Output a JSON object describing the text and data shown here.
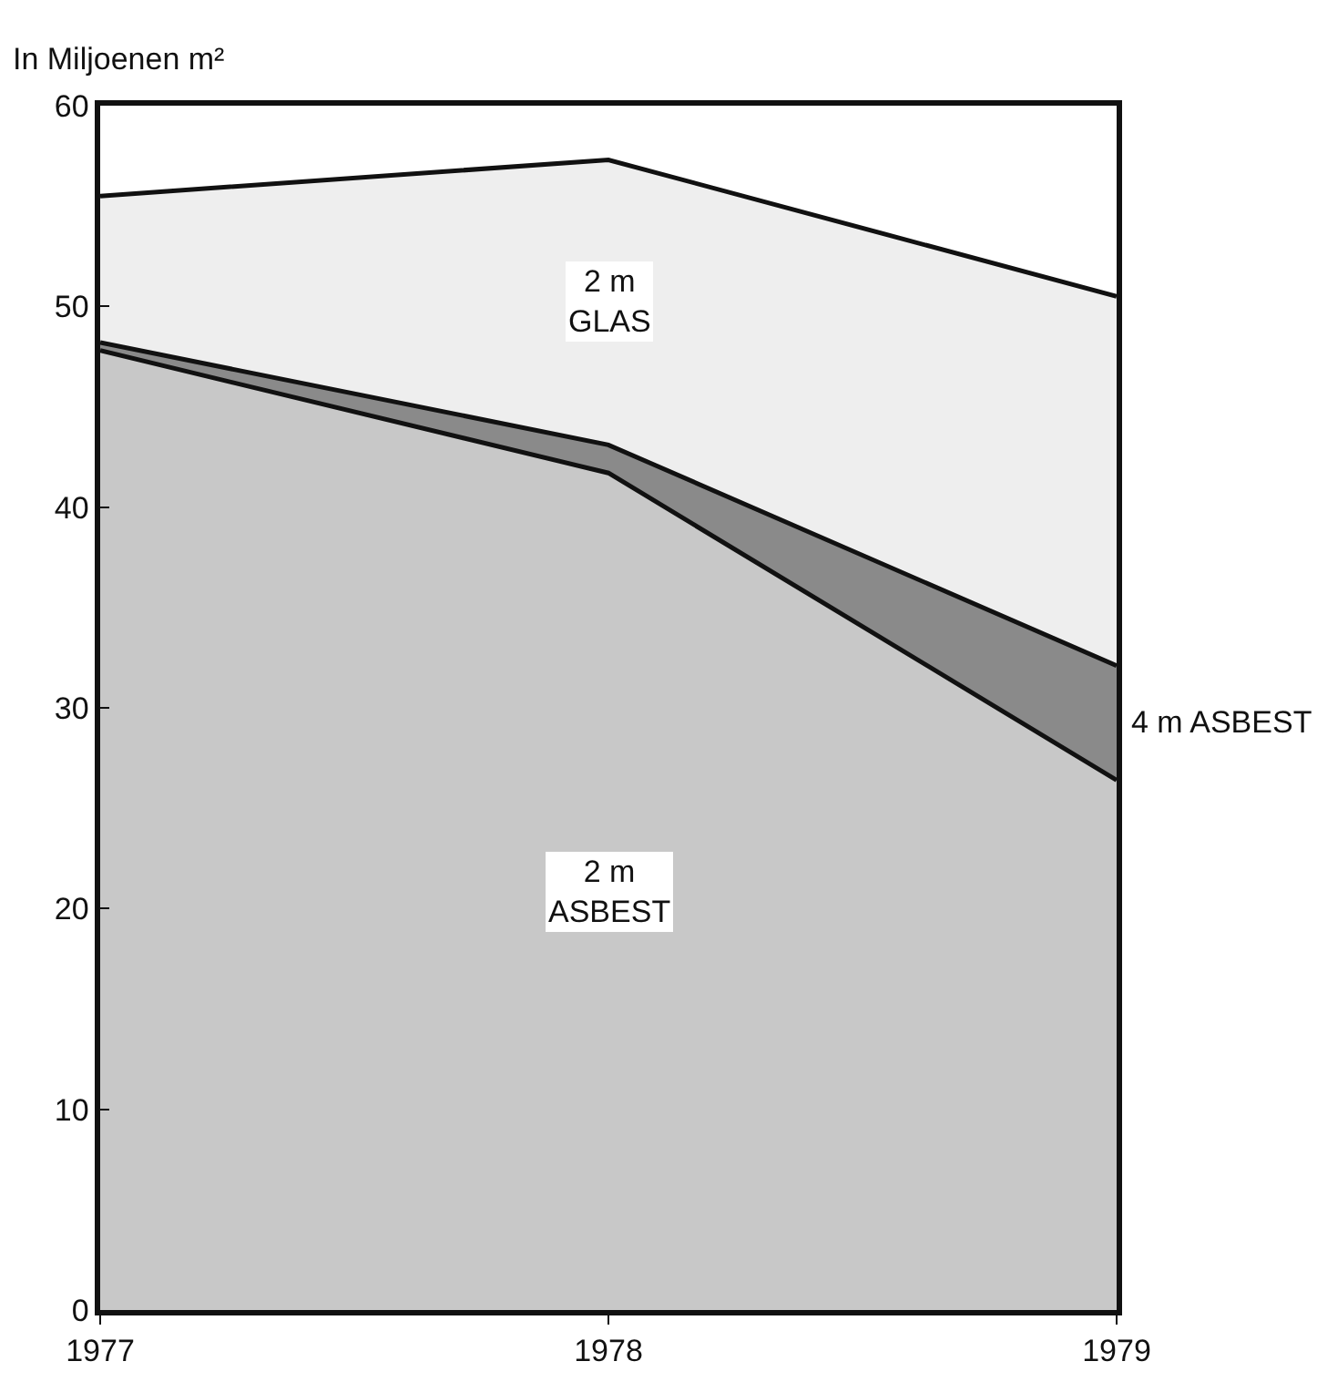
{
  "chart_data": {
    "type": "area",
    "stacked": true,
    "ylabel": "In Miljoenen m²",
    "x": [
      1977,
      1978,
      1979
    ],
    "xlim": [
      1977,
      1979
    ],
    "xticks": [
      1977,
      1978,
      1979
    ],
    "ylim": [
      0,
      60
    ],
    "yticks": [
      0,
      10,
      20,
      30,
      40,
      50,
      60
    ],
    "grid": false,
    "legend": false,
    "series": [
      {
        "name": "2 m ASBEST",
        "color": "#c8c8c8",
        "values": [
          47.8,
          41.7,
          26.4
        ]
      },
      {
        "name": "4 m ASBEST",
        "color": "#8a8a8a",
        "values": [
          0.4,
          1.4,
          5.7
        ]
      },
      {
        "name": "2 m GLAS",
        "color": "#eeeeee",
        "values": [
          7.3,
          14.2,
          18.4
        ]
      }
    ]
  }
}
